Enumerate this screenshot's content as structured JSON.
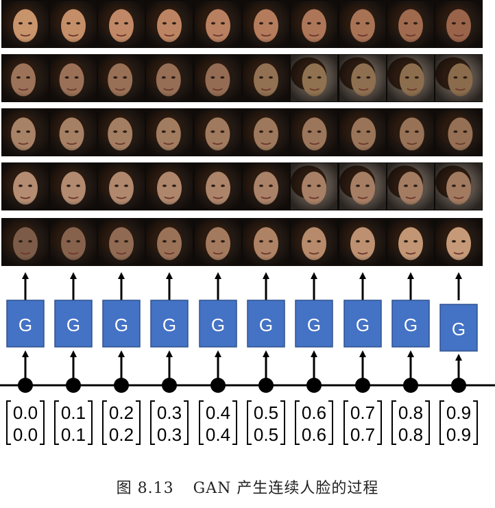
{
  "generator": {
    "label": "G",
    "color": "#4472c4",
    "border": "#2f528f",
    "text_color": "#ffffff"
  },
  "face_rows": [
    {
      "description": "smiling woman frontal morph",
      "palette": [
        "#c8946c",
        "#c48e68",
        "#c08866",
        "#bc8462",
        "#b88060",
        "#b47c5c",
        "#ad7658",
        "#a87254",
        "#a06a4e",
        "#9a644a"
      ]
    },
    {
      "description": "man turning head morph",
      "palette": [
        "#9c7358",
        "#9a7157",
        "#987056",
        "#966e55",
        "#946c54",
        "#927052",
        "#907250",
        "#8e7050",
        "#8c6e4e",
        "#8a6c4c"
      ]
    },
    {
      "description": "profile face morph",
      "palette": [
        "#a88266",
        "#a68064",
        "#a47e62",
        "#a27c60",
        "#a07a5e",
        "#9e785c",
        "#9c765a",
        "#9a7458",
        "#987256",
        "#967054"
      ]
    },
    {
      "description": "woman three-quarter morph",
      "palette": [
        "#b48c72",
        "#b28a70",
        "#b0886e",
        "#ae866c",
        "#ac846a",
        "#aa8268",
        "#a88066",
        "#a67e64",
        "#a47c62",
        "#a27a60"
      ]
    },
    {
      "description": "man to woman frontal morph",
      "palette": [
        "#7c5c48",
        "#86624c",
        "#906a52",
        "#9a7258",
        "#a47a5e",
        "#ae8264",
        "#b68a6a",
        "#bc9070",
        "#c29674",
        "#c69a78"
      ]
    }
  ],
  "inputs": [
    {
      "top": "0.0",
      "bottom": "0.0"
    },
    {
      "top": "0.1",
      "bottom": "0.1"
    },
    {
      "top": "0.2",
      "bottom": "0.2"
    },
    {
      "top": "0.3",
      "bottom": "0.3"
    },
    {
      "top": "0.4",
      "bottom": "0.4"
    },
    {
      "top": "0.5",
      "bottom": "0.5"
    },
    {
      "top": "0.6",
      "bottom": "0.6"
    },
    {
      "top": "0.7",
      "bottom": "0.7"
    },
    {
      "top": "0.8",
      "bottom": "0.8"
    },
    {
      "top": "0.9",
      "bottom": "0.9"
    }
  ],
  "caption": {
    "label": "图 8.13",
    "text": "GAN 产生连续人脸的过程"
  }
}
